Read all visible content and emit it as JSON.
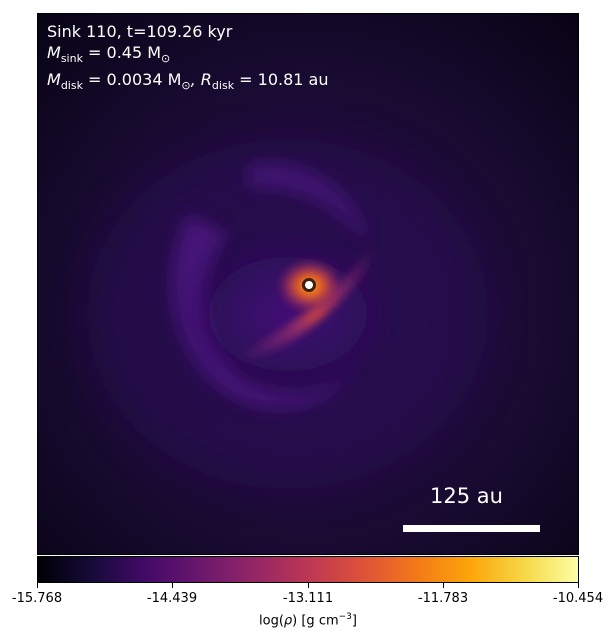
{
  "panel": {
    "sink_line": "Sink 110, t=109.26 kyr",
    "mass_sink_label": "M",
    "mass_sink_sub": "sink",
    "mass_sink_value": " = 0.45 M",
    "mass_sink_unit_sub": "⊙",
    "mass_disk_label": "M",
    "mass_disk_sub": "disk",
    "mass_disk_value": " = 0.0034 M",
    "mass_disk_unit_sub": "⊙",
    "radius_label": ", R",
    "radius_sub": "disk",
    "radius_value": " = 10.81 au",
    "scale_label": "125 au"
  },
  "colorbar": {
    "colormap": "inferno",
    "ticks": [
      "-15.768",
      "-14.439",
      "-13.111",
      "-11.783",
      "-10.454"
    ],
    "title_prefix": "log(",
    "title_rho": "ρ",
    "title_mid": ") [g cm",
    "title_exp": "−3",
    "title_suffix": "]"
  }
}
